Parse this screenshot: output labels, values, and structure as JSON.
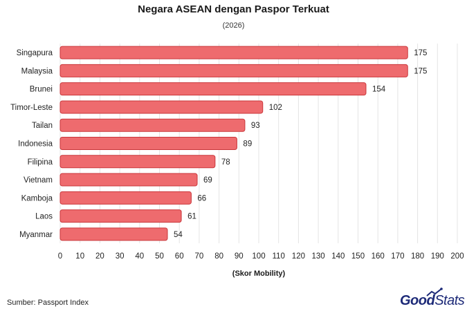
{
  "header": {
    "title": "Negara ASEAN dengan Paspor Terkuat",
    "subtitle": "(2026)"
  },
  "footer": {
    "source": "Sumber: Passport Index",
    "logo_bold": "Good",
    "logo_light": "Stats"
  },
  "colors": {
    "bar_fill": "#ee6b6e",
    "bar_stroke": "#c9363a",
    "grid": "#e4e4e4",
    "logo": "#1d2a78"
  },
  "chart_data": {
    "type": "bar",
    "orientation": "horizontal",
    "title": "Negara ASEAN dengan Paspor Terkuat",
    "subtitle": "(2026)",
    "xlabel": "(Skor Mobility)",
    "ylabel": "",
    "categories": [
      "Singapura",
      "Malaysia",
      "Brunei",
      "Timor-Leste",
      "Tailan",
      "Indonesia",
      "Filipina",
      "Vietnam",
      "Kamboja",
      "Laos",
      "Myanmar"
    ],
    "values": [
      175,
      175,
      154,
      102,
      93,
      89,
      78,
      69,
      66,
      61,
      54
    ],
    "xlim": [
      0,
      200
    ],
    "xticks": [
      "0",
      "10",
      "20",
      "30",
      "40",
      "50",
      "60",
      "70",
      "80",
      "90",
      "100",
      "110",
      "120",
      "130",
      "140",
      "150",
      "160",
      "170",
      "180",
      "190",
      "200"
    ],
    "grid": true,
    "data_labels": true
  }
}
